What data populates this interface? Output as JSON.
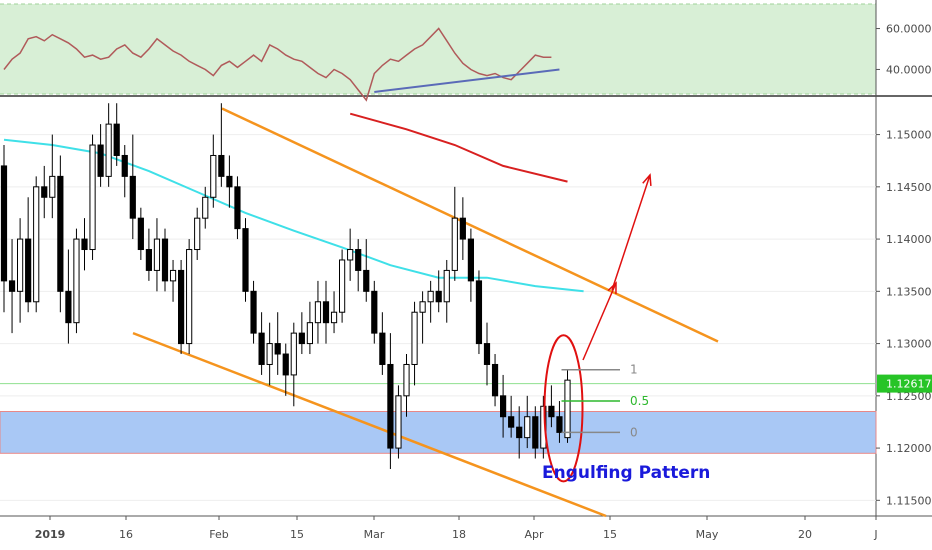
{
  "chart_data": {
    "type": "candlestick",
    "title": "",
    "xlabel": "",
    "ylabel": "",
    "price_ylim": [
      1.1135,
      1.1535
    ],
    "x_tick_labels": [
      "2019",
      "16",
      "Feb",
      "15",
      "Mar",
      "18",
      "Apr",
      "15",
      "May",
      "20",
      "J"
    ],
    "y_tick_labels": [
      "1.15000",
      "1.14500",
      "1.14000",
      "1.13500",
      "1.13000",
      "1.12500",
      "1.12000",
      "1.11500"
    ],
    "y_tick_values": [
      1.15,
      1.145,
      1.14,
      1.135,
      1.13,
      1.125,
      1.12,
      1.115
    ],
    "current_price_label": "1.12617",
    "current_price": 1.12617,
    "candles": [
      [
        1.147,
        1.149,
        1.133,
        1.136
      ],
      [
        1.136,
        1.14,
        1.131,
        1.135
      ],
      [
        1.135,
        1.142,
        1.132,
        1.14
      ],
      [
        1.14,
        1.144,
        1.133,
        1.134
      ],
      [
        1.134,
        1.146,
        1.133,
        1.145
      ],
      [
        1.145,
        1.147,
        1.142,
        1.144
      ],
      [
        1.144,
        1.15,
        1.142,
        1.146
      ],
      [
        1.146,
        1.148,
        1.133,
        1.135
      ],
      [
        1.135,
        1.139,
        1.13,
        1.132
      ],
      [
        1.132,
        1.141,
        1.131,
        1.14
      ],
      [
        1.14,
        1.142,
        1.137,
        1.139
      ],
      [
        1.139,
        1.15,
        1.138,
        1.149
      ],
      [
        1.149,
        1.151,
        1.145,
        1.146
      ],
      [
        1.146,
        1.153,
        1.145,
        1.151
      ],
      [
        1.151,
        1.153,
        1.147,
        1.148
      ],
      [
        1.148,
        1.149,
        1.144,
        1.146
      ],
      [
        1.146,
        1.15,
        1.14,
        1.142
      ],
      [
        1.142,
        1.143,
        1.138,
        1.139
      ],
      [
        1.139,
        1.141,
        1.136,
        1.137
      ],
      [
        1.137,
        1.142,
        1.135,
        1.14
      ],
      [
        1.14,
        1.141,
        1.135,
        1.136
      ],
      [
        1.136,
        1.138,
        1.134,
        1.137
      ],
      [
        1.137,
        1.138,
        1.129,
        1.13
      ],
      [
        1.13,
        1.14,
        1.129,
        1.139
      ],
      [
        1.139,
        1.143,
        1.138,
        1.142
      ],
      [
        1.142,
        1.145,
        1.141,
        1.144
      ],
      [
        1.144,
        1.15,
        1.143,
        1.148
      ],
      [
        1.148,
        1.153,
        1.145,
        1.146
      ],
      [
        1.146,
        1.148,
        1.143,
        1.145
      ],
      [
        1.145,
        1.146,
        1.14,
        1.141
      ],
      [
        1.141,
        1.142,
        1.134,
        1.135
      ],
      [
        1.135,
        1.136,
        1.13,
        1.131
      ],
      [
        1.131,
        1.133,
        1.127,
        1.128
      ],
      [
        1.128,
        1.132,
        1.126,
        1.13
      ],
      [
        1.13,
        1.133,
        1.127,
        1.129
      ],
      [
        1.129,
        1.13,
        1.125,
        1.127
      ],
      [
        1.127,
        1.132,
        1.124,
        1.131
      ],
      [
        1.131,
        1.133,
        1.129,
        1.13
      ],
      [
        1.13,
        1.134,
        1.129,
        1.132
      ],
      [
        1.132,
        1.136,
        1.13,
        1.134
      ],
      [
        1.134,
        1.136,
        1.13,
        1.132
      ],
      [
        1.132,
        1.135,
        1.131,
        1.133
      ],
      [
        1.133,
        1.139,
        1.132,
        1.138
      ],
      [
        1.138,
        1.141,
        1.136,
        1.139
      ],
      [
        1.139,
        1.14,
        1.135,
        1.137
      ],
      [
        1.137,
        1.14,
        1.134,
        1.135
      ],
      [
        1.135,
        1.136,
        1.13,
        1.131
      ],
      [
        1.131,
        1.133,
        1.127,
        1.128
      ],
      [
        1.128,
        1.131,
        1.118,
        1.12
      ],
      [
        1.12,
        1.126,
        1.119,
        1.125
      ],
      [
        1.125,
        1.129,
        1.123,
        1.128
      ],
      [
        1.128,
        1.134,
        1.126,
        1.133
      ],
      [
        1.133,
        1.135,
        1.13,
        1.134
      ],
      [
        1.134,
        1.136,
        1.132,
        1.135
      ],
      [
        1.135,
        1.137,
        1.133,
        1.134
      ],
      [
        1.134,
        1.138,
        1.132,
        1.137
      ],
      [
        1.137,
        1.145,
        1.136,
        1.142
      ],
      [
        1.142,
        1.144,
        1.138,
        1.14
      ],
      [
        1.14,
        1.141,
        1.134,
        1.136
      ],
      [
        1.136,
        1.137,
        1.129,
        1.13
      ],
      [
        1.13,
        1.132,
        1.126,
        1.128
      ],
      [
        1.128,
        1.129,
        1.124,
        1.125
      ],
      [
        1.125,
        1.127,
        1.121,
        1.123
      ],
      [
        1.123,
        1.125,
        1.121,
        1.122
      ],
      [
        1.122,
        1.124,
        1.119,
        1.121
      ],
      [
        1.121,
        1.125,
        1.12,
        1.123
      ],
      [
        1.123,
        1.124,
        1.119,
        1.12
      ],
      [
        1.12,
        1.125,
        1.119,
        1.124
      ],
      [
        1.124,
        1.126,
        1.122,
        1.123
      ],
      [
        1.123,
        1.1245,
        1.1205,
        1.1215
      ],
      [
        1.121,
        1.1275,
        1.1205,
        1.1265
      ]
    ],
    "sma_upper_red": [
      [
        43,
        1.152
      ],
      [
        50,
        1.1505
      ],
      [
        56,
        1.149
      ],
      [
        62,
        1.147
      ],
      [
        70,
        1.1455
      ]
    ],
    "sma_cyan": [
      [
        0,
        1.1495
      ],
      [
        6,
        1.149
      ],
      [
        12,
        1.1482
      ],
      [
        18,
        1.1465
      ],
      [
        24,
        1.1445
      ],
      [
        30,
        1.1425
      ],
      [
        36,
        1.1408
      ],
      [
        42,
        1.1392
      ],
      [
        48,
        1.1375
      ],
      [
        54,
        1.1363
      ],
      [
        60,
        1.1363
      ],
      [
        66,
        1.1355
      ],
      [
        72,
        1.135
      ]
    ],
    "support_zone": [
      1.1195,
      1.1235
    ],
    "fibonacci_levels": [
      {
        "label": "1",
        "price": 1.1275,
        "color": "#888888"
      },
      {
        "label": "0.5",
        "price": 1.1245,
        "color": "#2db82d"
      },
      {
        "label": "0",
        "price": 1.1215,
        "color": "#888888"
      }
    ],
    "annotation": "Engulfing Pattern",
    "indicator": {
      "type": "line",
      "y_tick_labels": [
        "60.0000",
        "40.0000"
      ],
      "y_tick_values": [
        60,
        40
      ],
      "ylim": [
        28,
        72
      ],
      "values": [
        40,
        45,
        48,
        55,
        56,
        54,
        57,
        55,
        53,
        50,
        46,
        47,
        45,
        46,
        50,
        52,
        48,
        46,
        50,
        55,
        52,
        49,
        47,
        44,
        42,
        40,
        37,
        42,
        44,
        41,
        44,
        47,
        44,
        52,
        50,
        47,
        45,
        44,
        41,
        38,
        36,
        40,
        38,
        35,
        30,
        25,
        38,
        42,
        45,
        44,
        47,
        50,
        52,
        56,
        60,
        54,
        48,
        43,
        40,
        38,
        37,
        38,
        36,
        35,
        39,
        43,
        47,
        46,
        46
      ],
      "trendline": [
        [
          46,
          29
        ],
        [
          69,
          40
        ]
      ]
    }
  },
  "colors": {
    "bull": "#ffffff",
    "bear": "#000000",
    "channel": "#f5941e",
    "rsi_line": "#b05a5a",
    "rsi_band": "#d8efd6",
    "rsi_trend": "#5a6ab8",
    "sma_red": "#d82020",
    "sma_cyan": "#3fe0e8",
    "support": "#a9c8f5",
    "arrow": "#e01010",
    "price_tag": "#27c427",
    "annotation": "#1a1adb"
  }
}
